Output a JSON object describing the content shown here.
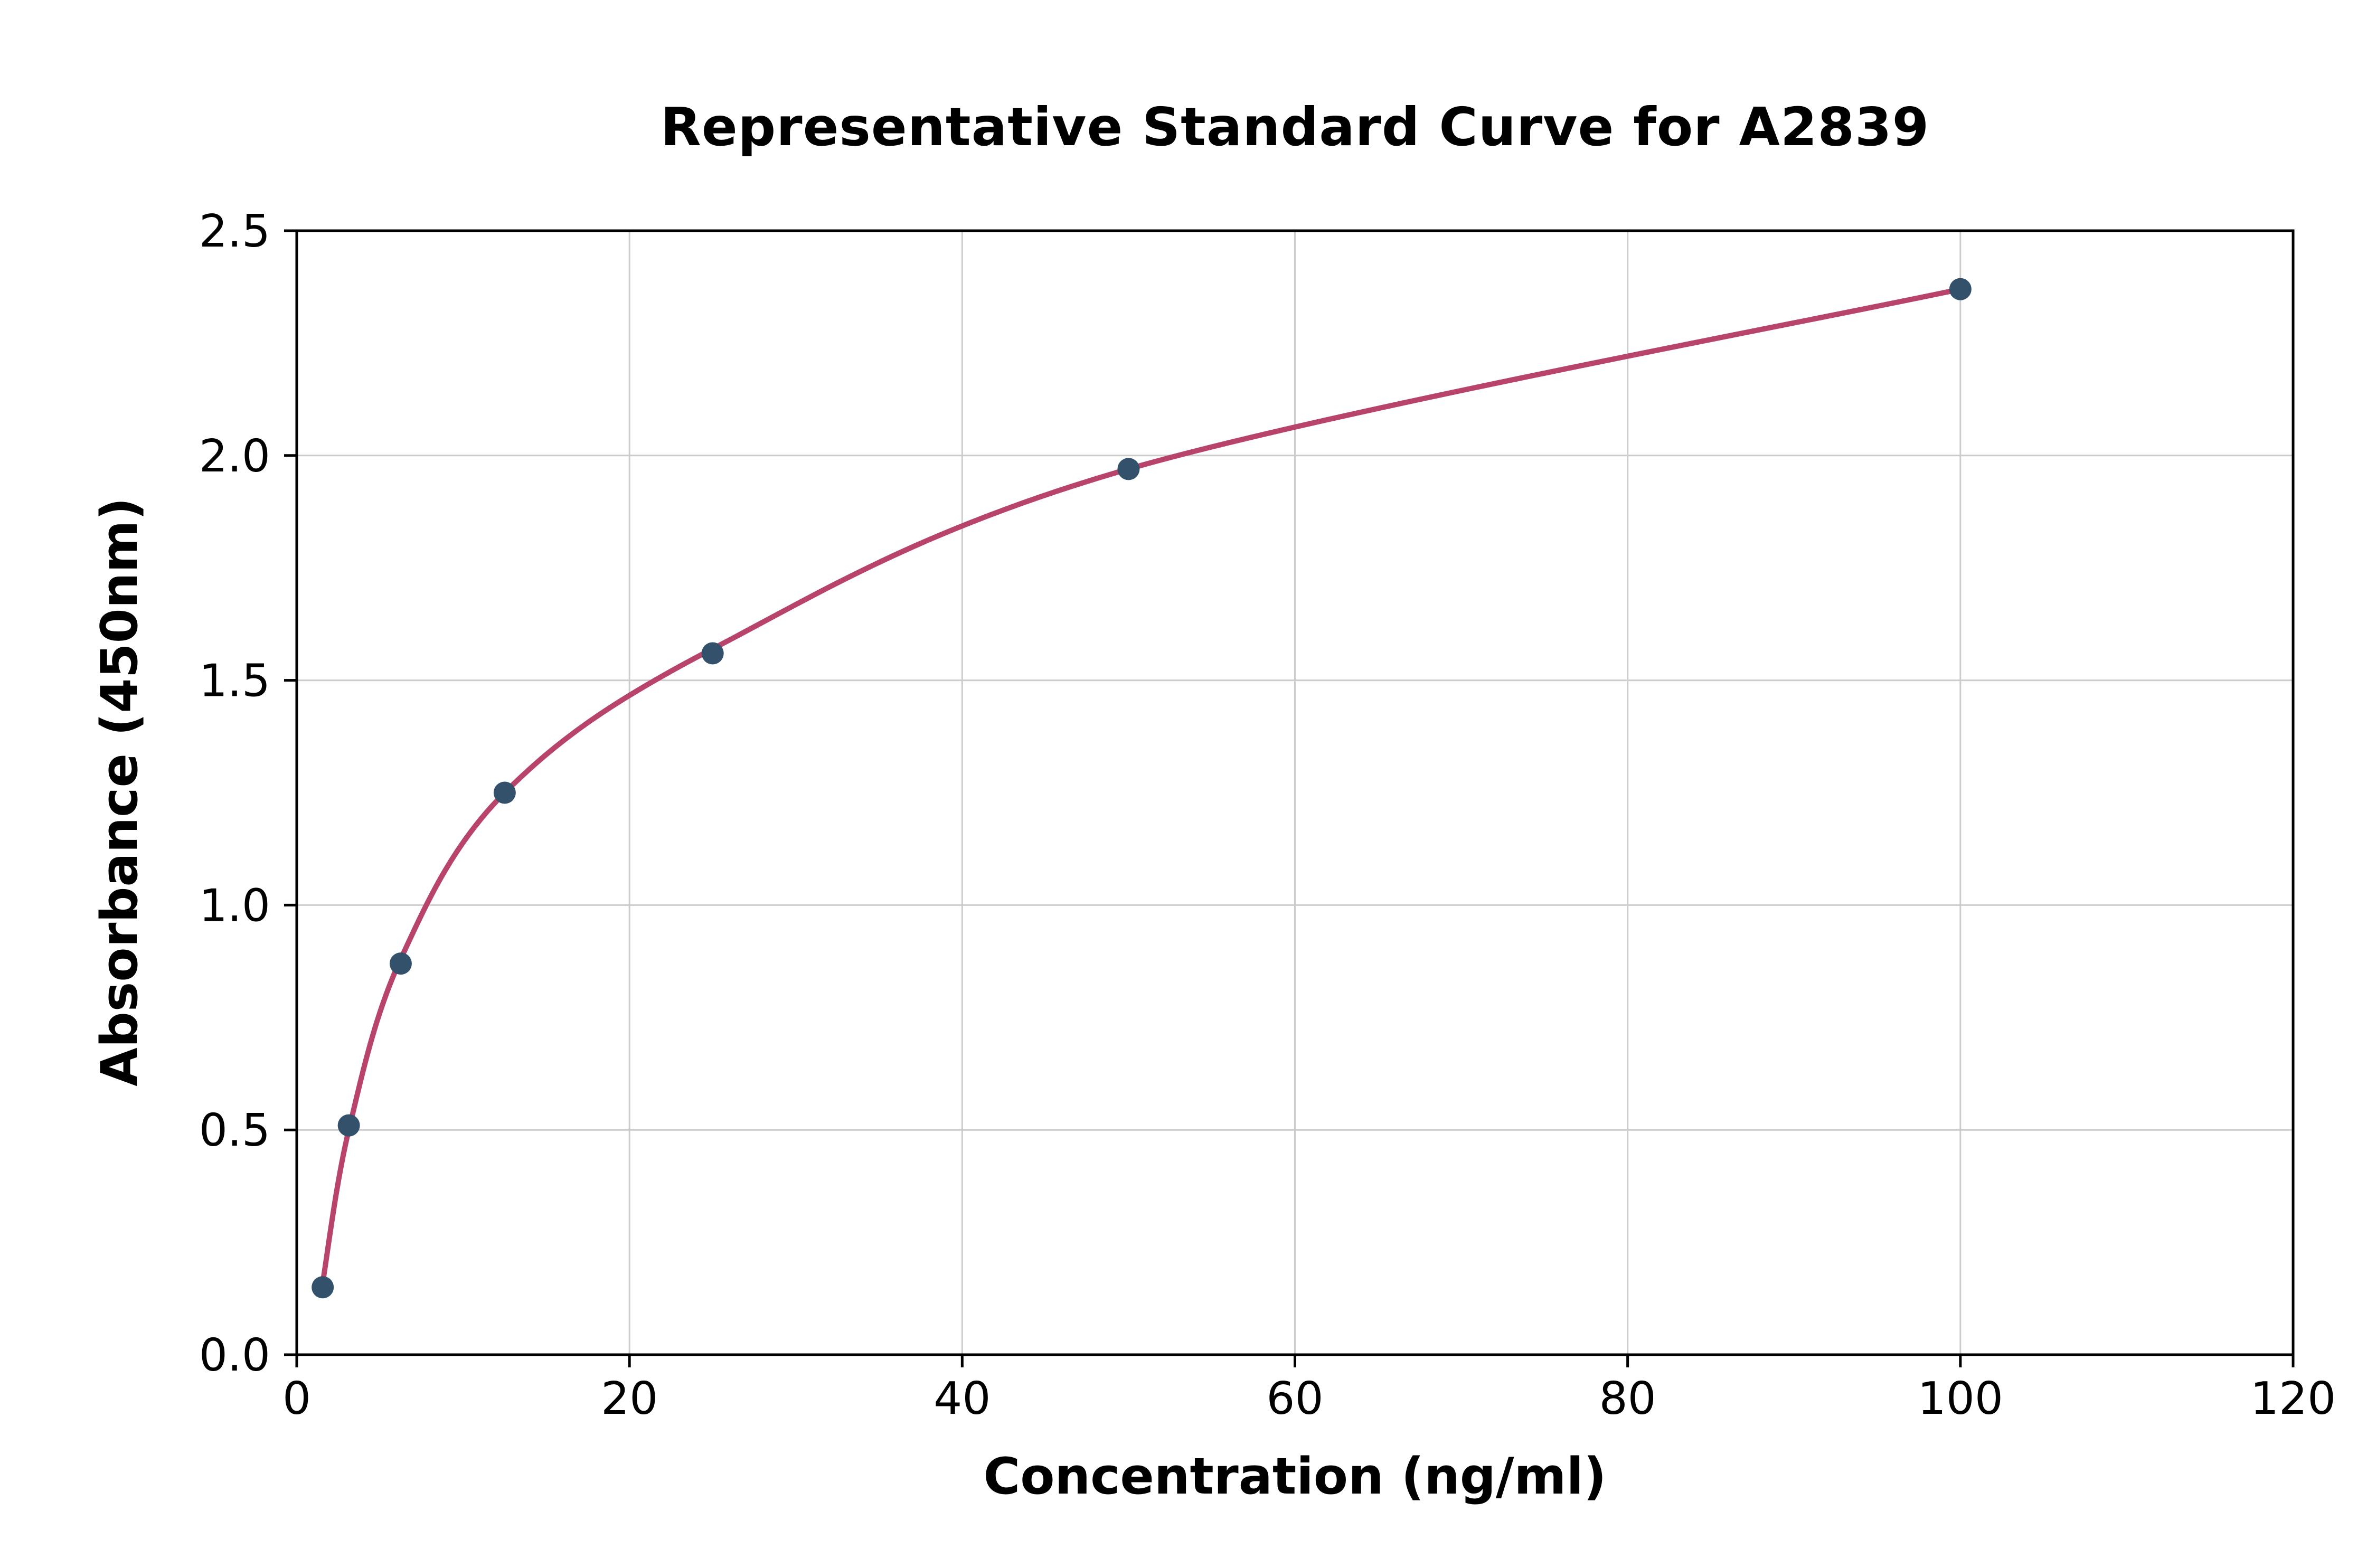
{
  "chart_data": {
    "type": "scatter",
    "title": "Representative Standard Curve for A2839",
    "xlabel": "Concentration (ng/ml)",
    "ylabel": "Absorbance (450nm)",
    "xlim": [
      0,
      120
    ],
    "ylim": [
      0,
      2.5
    ],
    "grid": true,
    "legend_position": "none",
    "xticks": [
      {
        "value": 0,
        "label": "0"
      },
      {
        "value": 20,
        "label": "20"
      },
      {
        "value": 40,
        "label": "40"
      },
      {
        "value": 60,
        "label": "60"
      },
      {
        "value": 80,
        "label": "80"
      },
      {
        "value": 100,
        "label": "100"
      },
      {
        "value": 120,
        "label": "120"
      }
    ],
    "yticks": [
      {
        "value": 0.0,
        "label": "0.0"
      },
      {
        "value": 0.5,
        "label": "0.5"
      },
      {
        "value": 1.0,
        "label": "1.0"
      },
      {
        "value": 1.5,
        "label": "1.5"
      },
      {
        "value": 2.0,
        "label": "2.0"
      },
      {
        "value": 2.5,
        "label": "2.5"
      }
    ],
    "series": [
      {
        "name": "fitted-curve",
        "type": "smooth-line",
        "x": [
          1.56,
          3.13,
          6.25,
          12.5,
          25,
          50,
          100
        ],
        "y": [
          0.16,
          0.5,
          0.88,
          1.25,
          1.57,
          1.97,
          2.37
        ],
        "color": "#b8436b",
        "stroke_width": 10
      },
      {
        "name": "standard-points",
        "type": "scatter",
        "x": [
          1.56,
          3.13,
          6.25,
          12.5,
          25,
          50,
          100
        ],
        "y": [
          0.15,
          0.51,
          0.87,
          1.25,
          1.56,
          1.97,
          2.37
        ],
        "color": "#33516b",
        "point_radius": 21
      }
    ],
    "colors": {
      "grid": "#cccccc",
      "axis": "#000000",
      "background": "#ffffff"
    }
  }
}
